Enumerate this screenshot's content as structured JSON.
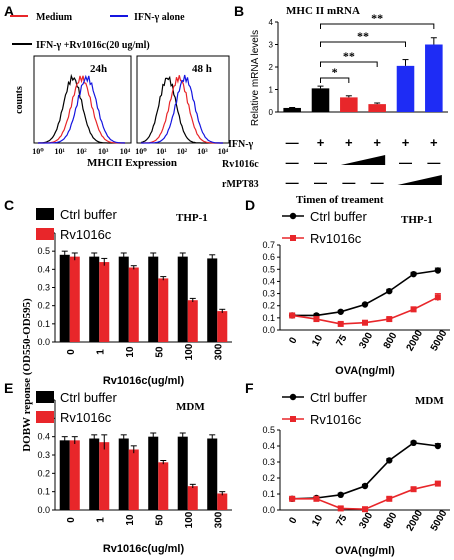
{
  "figure": {
    "panel_labels": [
      "A",
      "B",
      "C",
      "D",
      "E",
      "F"
    ],
    "y_shared_label": "DOBW reponse (OD550-OD595)"
  },
  "colors": {
    "black": "#000000",
    "red": "#e8262a",
    "blue": "#1515e0",
    "blue_bar": "#1e2cf5"
  },
  "chart_data": [
    {
      "id": "A",
      "type": "area",
      "kind": "flow-cytometry-histogram",
      "xlabel": "MHCII Expression",
      "ylabel": "counts",
      "x_ticks": [
        "10⁰",
        "10¹",
        "10²",
        "10³",
        "10⁴"
      ],
      "legend": [
        "Medium",
        "IFN-γ alone",
        "IFN-γ +Rv1016c(20  ug/ml)"
      ],
      "subpanels": [
        {
          "title": "24h",
          "peaks": {
            "black": 1.6,
            "red": 2.0,
            "blue": 2.25
          }
        },
        {
          "title": "48 h",
          "peaks": {
            "black": 1.3,
            "red": 1.85,
            "blue": 2.15
          }
        }
      ]
    },
    {
      "id": "B",
      "type": "bar",
      "title": "MHC II mRNA",
      "ylabel": "Relative mRNA levels",
      "ylim": [
        0,
        4
      ],
      "yticks": [
        0,
        1,
        2,
        3,
        4
      ],
      "values": [
        0.18,
        1.05,
        0.65,
        0.35,
        2.05,
        3.0
      ],
      "errors": [
        0.02,
        0.1,
        0.07,
        0.05,
        0.28,
        0.3
      ],
      "colors": [
        "black",
        "black",
        "red",
        "red",
        "blue",
        "blue"
      ],
      "row_labels": [
        "IFN-γ",
        "Rv1016c",
        "rMPT83"
      ],
      "ifn_row": [
        "—",
        "+",
        "+",
        "+",
        "+",
        "+"
      ],
      "rv_row": [
        "—",
        "—",
        "ramp",
        "ramp",
        "—",
        "—"
      ],
      "mpt_row": [
        "—",
        "—",
        "—",
        "—",
        "ramp",
        "ramp"
      ],
      "significance": [
        {
          "from": 1,
          "to": 2,
          "label": "*"
        },
        {
          "from": 1,
          "to": 3,
          "label": "**"
        },
        {
          "from": 1,
          "to": 4,
          "label": "**"
        },
        {
          "from": 1,
          "to": 5,
          "label": "**"
        }
      ],
      "extra_label": "Timen of treament"
    },
    {
      "id": "C",
      "type": "bar",
      "cell": "THP-1",
      "xlabel": "Rv1016c(ug/ml)",
      "categories": [
        "0",
        "1",
        "10",
        "50",
        "100",
        "300"
      ],
      "ylim": [
        0,
        0.6
      ],
      "yticks": [
        "0.0",
        "0.1",
        "0.2",
        "0.3",
        "0.4",
        "0.5",
        "0.6"
      ],
      "series": [
        {
          "name": "Ctrl buffer",
          "color": "black",
          "values": [
            0.48,
            0.47,
            0.47,
            0.47,
            0.47,
            0.46
          ],
          "errors": [
            0.02,
            0.02,
            0.02,
            0.02,
            0.02,
            0.02
          ]
        },
        {
          "name": "Rv1016c",
          "color": "red",
          "values": [
            0.47,
            0.44,
            0.41,
            0.35,
            0.23,
            0.17
          ],
          "errors": [
            0.02,
            0.02,
            0.01,
            0.01,
            0.01,
            0.01
          ]
        }
      ]
    },
    {
      "id": "D",
      "type": "line",
      "cell": "THP-1",
      "xlabel": "OVA(ng/ml)",
      "categories": [
        "0",
        "10",
        "75",
        "300",
        "800",
        "2000",
        "5000"
      ],
      "ylim": [
        0,
        0.7
      ],
      "yticks": [
        "0.0",
        "0.1",
        "0.2",
        "0.3",
        "0.4",
        "0.5",
        "0.6",
        "0.7"
      ],
      "series": [
        {
          "name": "Ctrl buffer",
          "color": "black",
          "marker": "circle",
          "values": [
            0.12,
            0.12,
            0.15,
            0.21,
            0.32,
            0.46,
            0.49
          ],
          "errors": [
            0.01,
            0.01,
            0.01,
            0.01,
            0.015,
            0.015,
            0.02
          ]
        },
        {
          "name": "Rv1016c",
          "color": "red",
          "marker": "square",
          "values": [
            0.12,
            0.09,
            0.05,
            0.06,
            0.09,
            0.17,
            0.27
          ],
          "errors": [
            0.01,
            0.01,
            0.01,
            0.01,
            0.01,
            0.02,
            0.03
          ]
        }
      ]
    },
    {
      "id": "E",
      "type": "bar",
      "cell": "MDM",
      "xlabel": "Rv1016c(ug/ml)",
      "categories": [
        "0",
        "1",
        "10",
        "50",
        "100",
        "300"
      ],
      "ylim": [
        0,
        0.6
      ],
      "yticks": [
        "0.0",
        "0.1",
        "0.2",
        "0.3",
        "0.4",
        "0.5",
        "0.6"
      ],
      "series": [
        {
          "name": "Ctrl buffer",
          "color": "black",
          "values": [
            0.38,
            0.39,
            0.39,
            0.4,
            0.4,
            0.39
          ],
          "errors": [
            0.02,
            0.02,
            0.02,
            0.02,
            0.02,
            0.02
          ]
        },
        {
          "name": "Rv1016c",
          "color": "red",
          "values": [
            0.38,
            0.37,
            0.33,
            0.26,
            0.13,
            0.09
          ],
          "errors": [
            0.02,
            0.04,
            0.02,
            0.01,
            0.01,
            0.01
          ]
        }
      ]
    },
    {
      "id": "F",
      "type": "line",
      "cell": "MDM",
      "xlabel": "OVA(ng/ml)",
      "categories": [
        "0",
        "10",
        "75",
        "300",
        "800",
        "2000",
        "5000"
      ],
      "ylim": [
        0,
        0.5
      ],
      "yticks": [
        "0.0",
        "0.1",
        "0.2",
        "0.3",
        "0.4",
        "0.5"
      ],
      "series": [
        {
          "name": "Ctrl buffer",
          "color": "black",
          "marker": "circle",
          "values": [
            0.07,
            0.075,
            0.095,
            0.15,
            0.31,
            0.42,
            0.4
          ],
          "errors": [
            0.01,
            0.01,
            0.01,
            0.01,
            0.01,
            0.01,
            0.015
          ]
        },
        {
          "name": "Rv1016c",
          "color": "red",
          "marker": "square",
          "values": [
            0.07,
            0.07,
            0.01,
            0.005,
            0.07,
            0.13,
            0.165
          ],
          "errors": [
            0.01,
            0.01,
            0.01,
            0.01,
            0.01,
            0.01,
            0.01
          ]
        }
      ]
    }
  ]
}
